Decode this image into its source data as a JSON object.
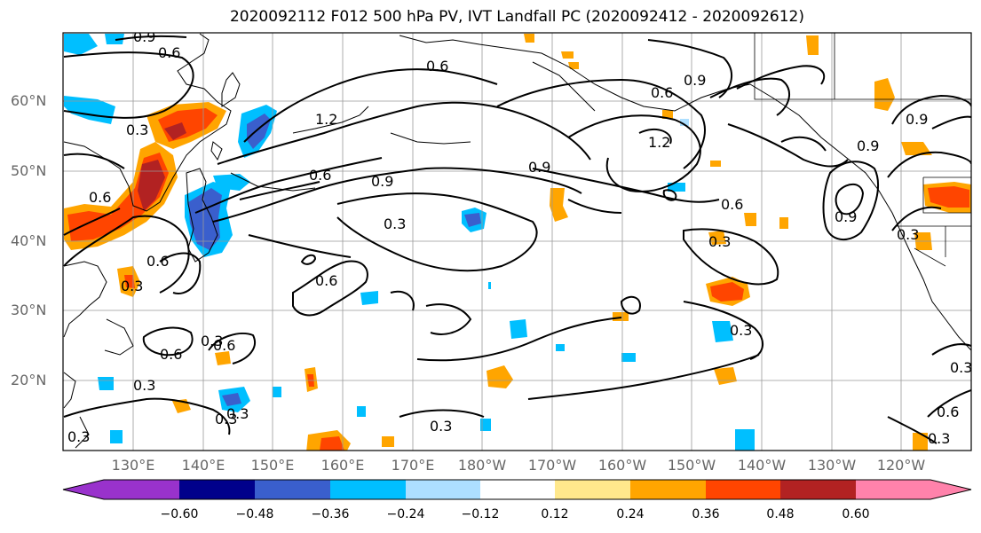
{
  "title": "2020092112 F012 500 hPa PV, IVT Landfall PC (2020092412 - 2020092612)",
  "lat_labels": [
    "60°N",
    "50°N",
    "40°N",
    "30°N",
    "20°N"
  ],
  "lon_labels": [
    "130°E",
    "140°E",
    "150°E",
    "160°E",
    "170°E",
    "180°W",
    "170°W",
    "160°W",
    "150°W",
    "140°W",
    "130°W",
    "120°W"
  ],
  "contour_labels": [
    "0.9",
    "0.6",
    "0.3",
    "0.6",
    "0.3",
    "0.6",
    "0.3",
    "0.6",
    "1.2",
    "0.6",
    "0.9",
    "0.3",
    "0.6",
    "0.3",
    "0.6",
    "0.9",
    "0.6",
    "1.2",
    "0.9",
    "0.6",
    "0.9",
    "0.9",
    "0.3",
    "0.3",
    "0.3",
    "0.9",
    "0.6",
    "0.3",
    "0.3",
    "0.3",
    "0.6",
    "0.3",
    "0.3",
    "0.3"
  ],
  "colorbar": {
    "ticks": [
      "−0.60",
      "−0.48",
      "−0.36",
      "−0.24",
      "−0.12",
      "0.12",
      "0.24",
      "0.36",
      "0.48",
      "0.60"
    ],
    "colors": [
      "#9932CC",
      "#00008B",
      "#3A5FCD",
      "#00BFFF",
      "#ADDFFF",
      "#FFFFFF",
      "#FFE88C",
      "#FFA500",
      "#FF4500",
      "#B22222",
      "#FF82AB"
    ]
  }
}
